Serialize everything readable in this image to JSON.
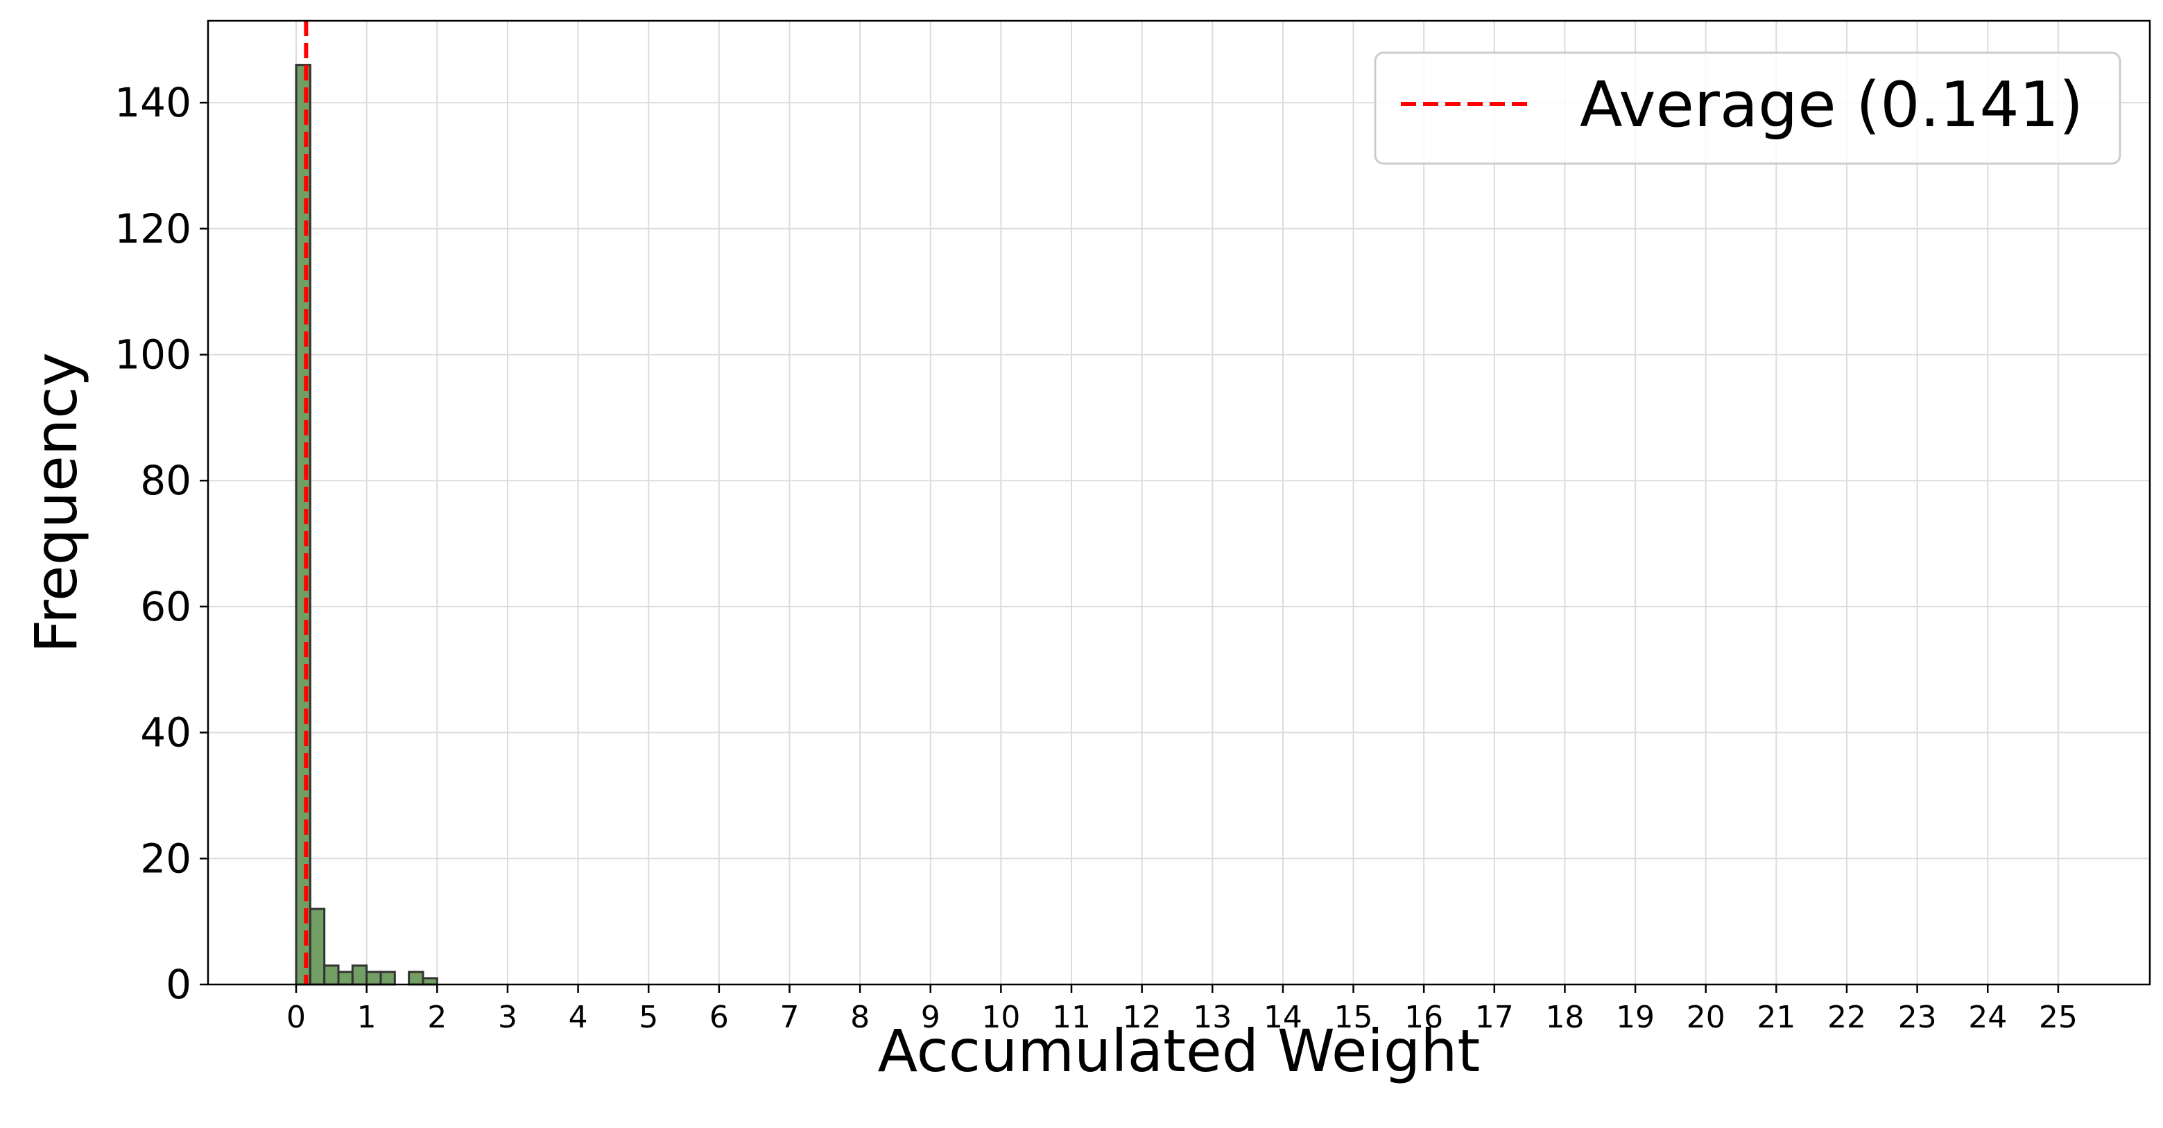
{
  "chart_data": {
    "type": "bar",
    "title": "",
    "xlabel": "Accumulated Weight",
    "ylabel": "Frequency",
    "xlim": [
      -1.25,
      26.3
    ],
    "ylim": [
      0,
      153
    ],
    "x_ticks": [
      "0",
      "1",
      "2",
      "3",
      "4",
      "5",
      "6",
      "7",
      "8",
      "9",
      "10",
      "11",
      "12",
      "13",
      "14",
      "15",
      "16",
      "17",
      "18",
      "19",
      "20",
      "21",
      "22",
      "23",
      "24",
      "25"
    ],
    "y_ticks": [
      "0",
      "20",
      "40",
      "60",
      "80",
      "100",
      "120",
      "140"
    ],
    "grid": true,
    "bin_width": 0.2,
    "bins": [
      {
        "x0": 0.0,
        "count": 146
      },
      {
        "x0": 0.2,
        "count": 12
      },
      {
        "x0": 0.4,
        "count": 3
      },
      {
        "x0": 0.6,
        "count": 2
      },
      {
        "x0": 0.8,
        "count": 3
      },
      {
        "x0": 1.0,
        "count": 2
      },
      {
        "x0": 1.2,
        "count": 2
      },
      {
        "x0": 1.4,
        "count": 0
      },
      {
        "x0": 1.6,
        "count": 2
      },
      {
        "x0": 1.8,
        "count": 1
      }
    ],
    "average_line": {
      "value": 0.141,
      "label": "Average (0.141)",
      "color": "#ff0000",
      "style": "dashed"
    },
    "legend": {
      "position": "top-right",
      "entries": [
        "Average (0.141)"
      ]
    },
    "colors": {
      "bar_fill": "#6a9a5b",
      "bar_edge": "#333333",
      "average": "#ff0000"
    }
  }
}
